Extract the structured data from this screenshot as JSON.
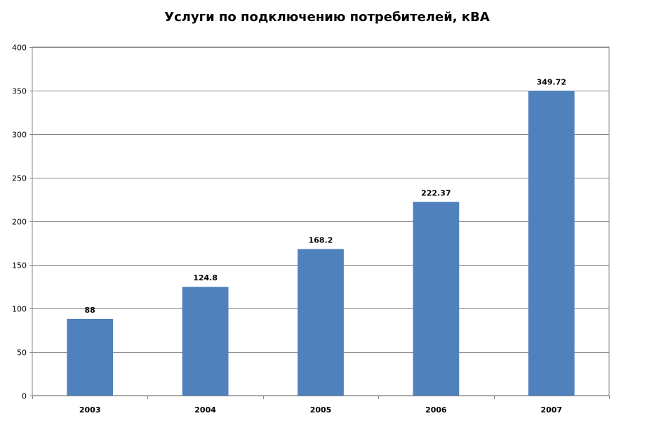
{
  "chart_data": {
    "type": "bar",
    "title": "Услуги по подключению потребителей, кВА",
    "xlabel": "",
    "ylabel": "",
    "categories": [
      "2003",
      "2004",
      "2005",
      "2006",
      "2007"
    ],
    "values": [
      88,
      124.8,
      168.2,
      222.37,
      349.72
    ],
    "data_labels": [
      "88",
      "124.8",
      "168.2",
      "222.37",
      "349.72"
    ],
    "ylim": [
      0,
      400
    ],
    "y_ticks": [
      0,
      50,
      100,
      150,
      200,
      250,
      300,
      350,
      400
    ],
    "grid": true,
    "legend": "none",
    "bar_color": "#4f81bd",
    "grid_color": "#868686",
    "axis_color": "#868686"
  }
}
